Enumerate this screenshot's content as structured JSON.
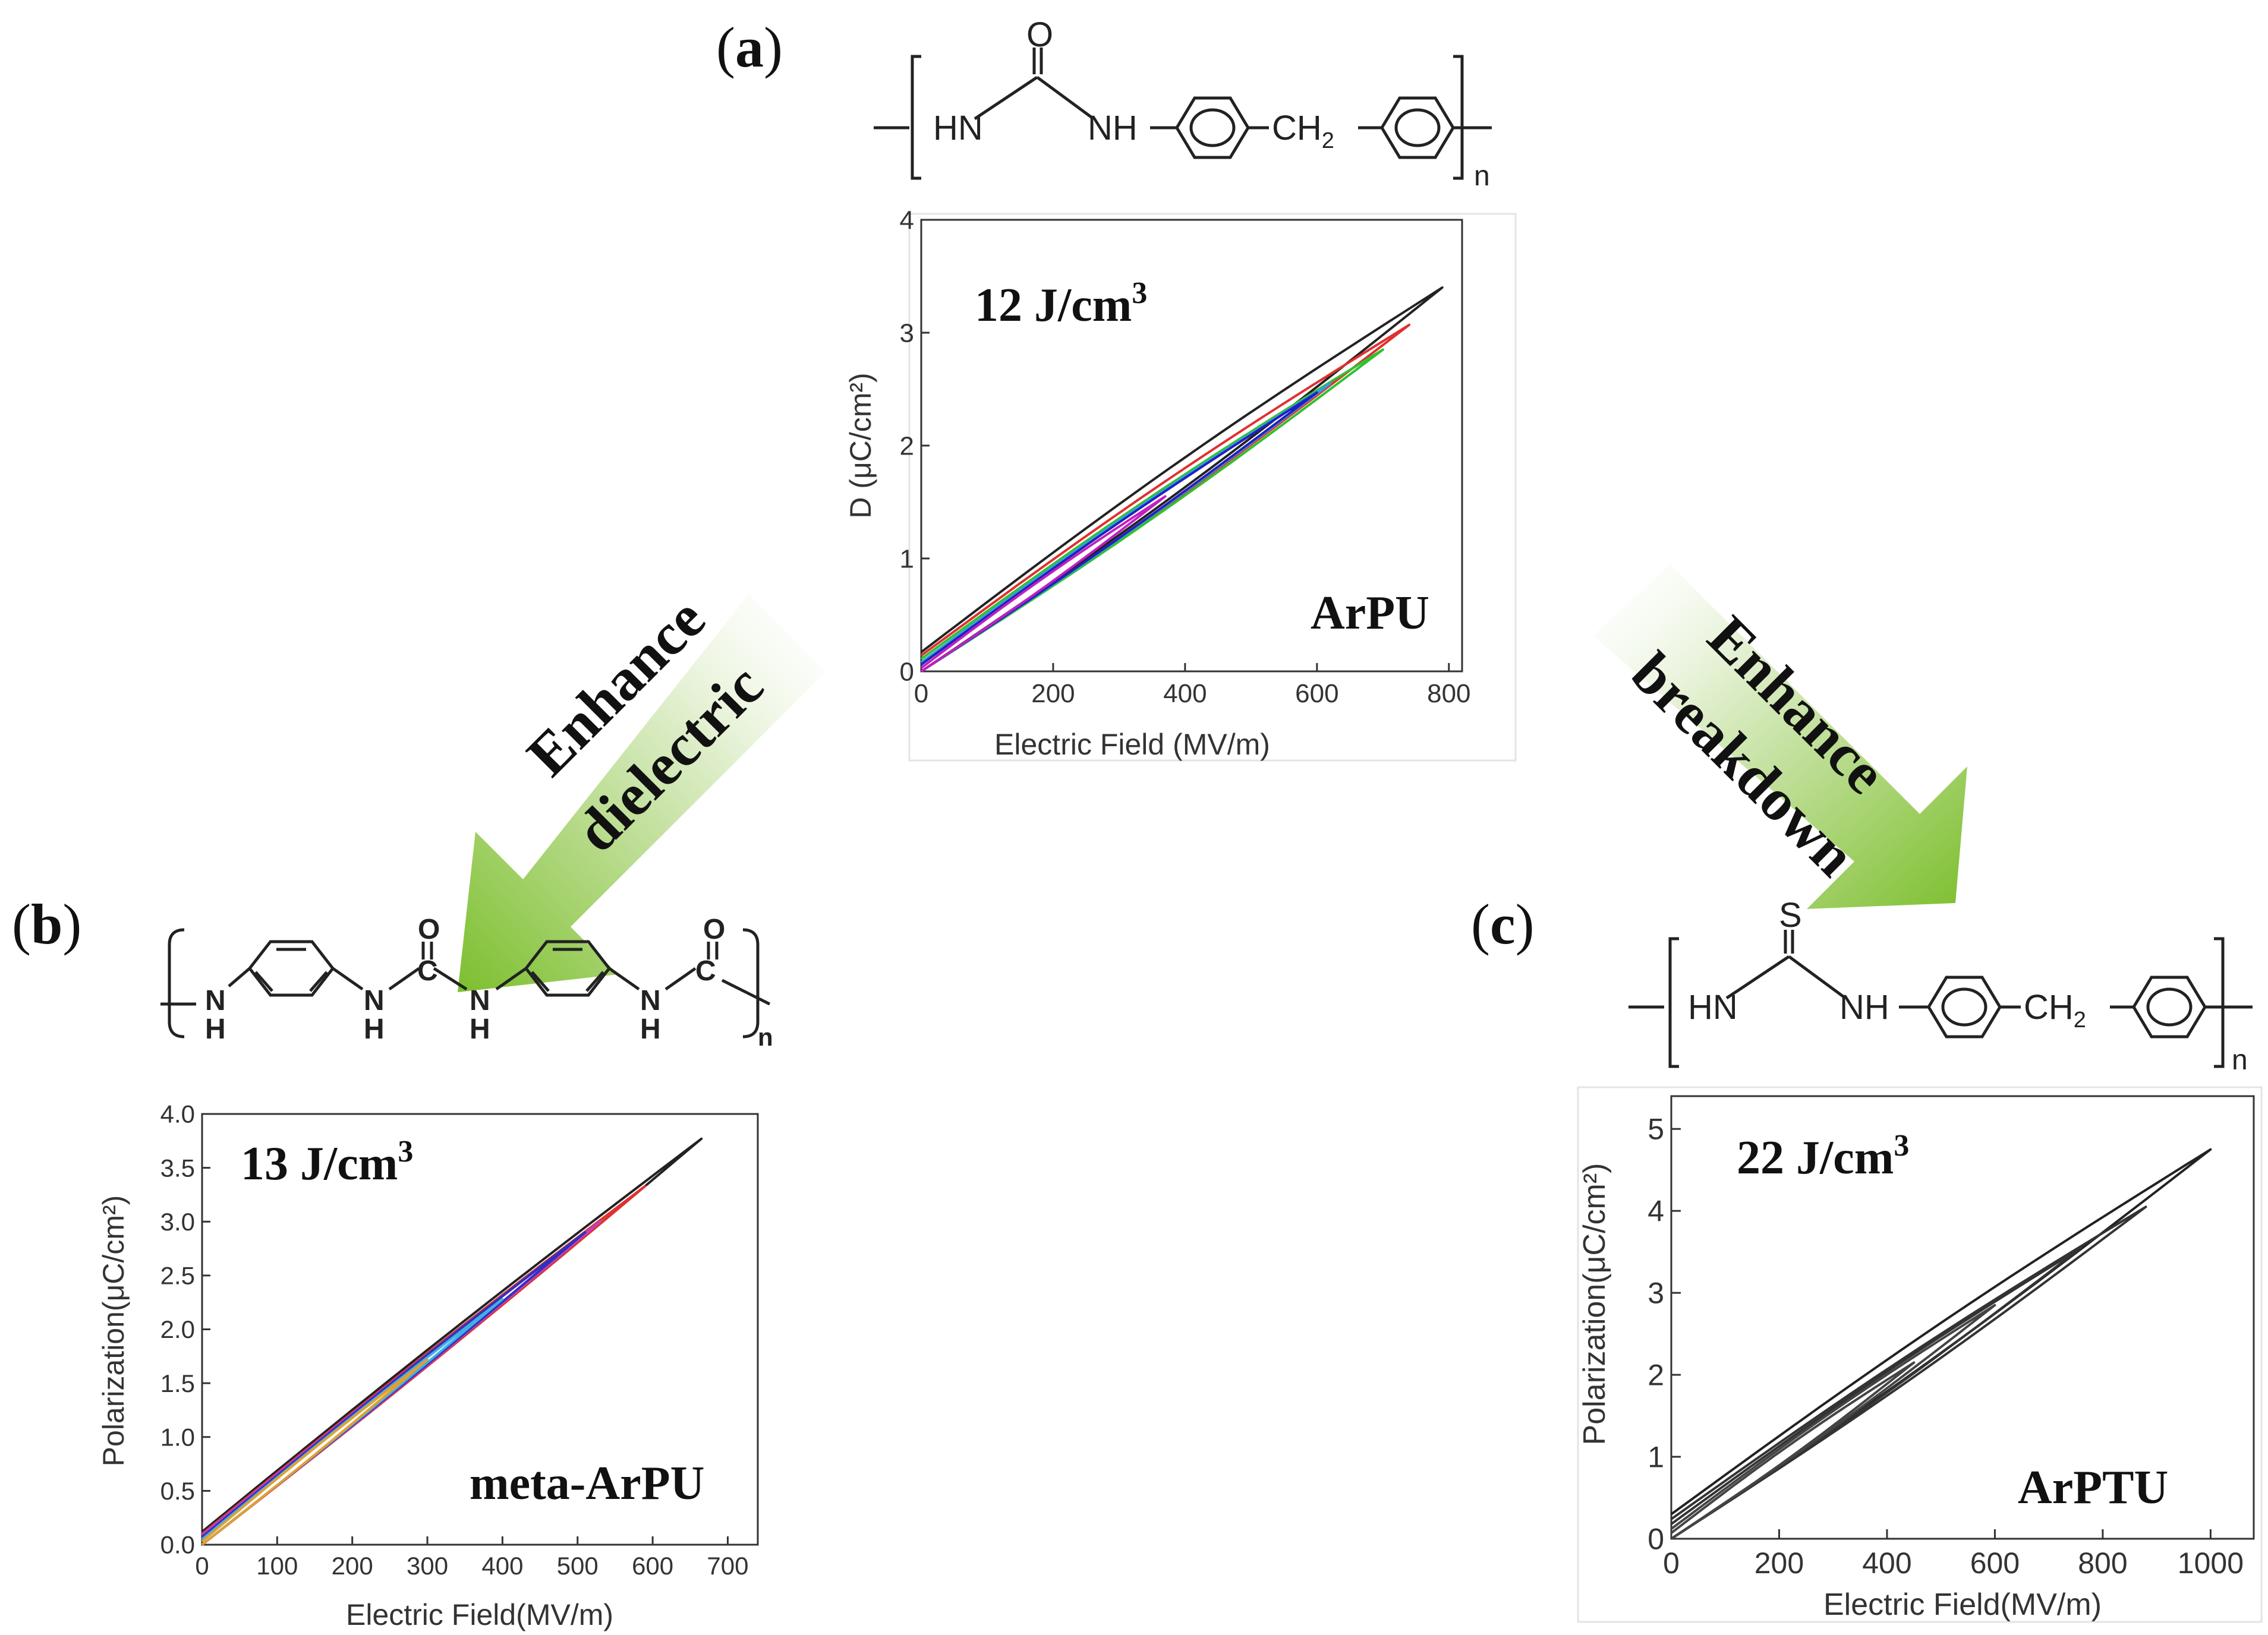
{
  "panels": [
    {
      "id": "a",
      "letter": "a",
      "polymer": "ArPU",
      "energy_value": "12 J/cm",
      "energy_sup": "3",
      "formula": {
        "nh_left": "HN",
        "carbonyl": "O",
        "nh_right": "NH",
        "bridge": "CH",
        "bridge_sub": "2",
        "repeat": "n"
      }
    },
    {
      "id": "b",
      "letter": "b",
      "polymer": "meta-ArPU",
      "energy_value": "13 J/cm",
      "energy_sup": "3",
      "formula": {
        "n_1": "N",
        "h_1": "H",
        "n_2": "N",
        "h_2": "H",
        "c_1": "C",
        "o_1": "O",
        "n_3": "N",
        "h_3": "H",
        "n_4": "N",
        "h_4": "H",
        "c_2": "C",
        "o_2": "O",
        "repeat": "n"
      }
    },
    {
      "id": "c",
      "letter": "c",
      "polymer": "ArPTU",
      "energy_value": "22 J/cm",
      "energy_sup": "3",
      "formula": {
        "nh_left": "HN",
        "thiocarbonyl": "S",
        "nh_right": "NH",
        "bridge": "CH",
        "bridge_sub": "2",
        "repeat": "n"
      }
    }
  ],
  "arrows": [
    {
      "id": "left",
      "line1": "Enhance",
      "line2": "dielectric",
      "color": "#8cc63f"
    },
    {
      "id": "right",
      "line1": "Enhance",
      "line2": "breakdown",
      "color": "#8cc63f"
    }
  ],
  "chart_data": [
    {
      "panel": "a",
      "type": "line",
      "xlabel": "Electric Field (MV/m)",
      "ylabel": "D (μC/cm²)",
      "xlim": [
        0,
        820
      ],
      "ylim": [
        0,
        4
      ],
      "xticks": [
        0,
        200,
        400,
        600,
        800
      ],
      "yticks": [
        0,
        1,
        2,
        3,
        4
      ],
      "grid": false,
      "series": [
        {
          "color": "#222222",
          "emax": 790,
          "dmax": 3.4,
          "hyst": 0.15,
          "d0": 0.17
        },
        {
          "color": "#e03030",
          "emax": 740,
          "dmax": 3.07,
          "hyst": 0.13,
          "d0": 0.14
        },
        {
          "color": "#30c030",
          "emax": 700,
          "dmax": 2.85,
          "hyst": 0.12,
          "d0": 0.11
        },
        {
          "color": "#30a0e0",
          "emax": 620,
          "dmax": 2.55,
          "hyst": 0.1,
          "d0": 0.08
        },
        {
          "color": "#2020c0",
          "emax": 600,
          "dmax": 2.47,
          "hyst": 0.09,
          "d0": 0.06
        },
        {
          "color": "#c020c0",
          "emax": 370,
          "dmax": 1.55,
          "hyst": 0.06,
          "d0": 0.03
        }
      ]
    },
    {
      "panel": "b",
      "type": "line",
      "xlabel": "Electric Field(MV/m)",
      "ylabel": "Polarization(μC/cm²)",
      "xlim": [
        0,
        740
      ],
      "ylim": [
        0,
        4.0
      ],
      "xticks": [
        0,
        100,
        200,
        300,
        400,
        500,
        600,
        700
      ],
      "ytick_labels": [
        "0.0",
        "0.5",
        "1.0",
        "1.5",
        "2.0",
        "2.5",
        "3.0",
        "3.5",
        "4.0"
      ],
      "grid": false,
      "series": [
        {
          "color": "#222222",
          "emax": 665,
          "dmax": 3.77,
          "hyst": 0.07,
          "d0": 0.12
        },
        {
          "color": "#e03030",
          "emax": 590,
          "dmax": 3.33,
          "hyst": 0.06,
          "d0": 0.1
        },
        {
          "color": "#c040c0",
          "emax": 530,
          "dmax": 3.0,
          "hyst": 0.05,
          "d0": 0.09
        },
        {
          "color": "#3030c0",
          "emax": 510,
          "dmax": 2.9,
          "hyst": 0.05,
          "d0": 0.07
        },
        {
          "color": "#40b0e0",
          "emax": 400,
          "dmax": 2.28,
          "hyst": 0.04,
          "d0": 0.05
        },
        {
          "color": "#e0a030",
          "emax": 300,
          "dmax": 1.72,
          "hyst": 0.04,
          "d0": 0.03
        }
      ]
    },
    {
      "panel": "c",
      "type": "line",
      "xlabel": "Electric Field(MV/m)",
      "ylabel": "Polarization(μC/cm²)",
      "xlim": [
        0,
        1080
      ],
      "ylim": [
        0,
        5.4
      ],
      "xticks": [
        0,
        200,
        400,
        600,
        800,
        1000
      ],
      "yticks": [
        0,
        1,
        2,
        3,
        4,
        5
      ],
      "grid": false,
      "series": [
        {
          "color": "#222222",
          "emax": 1000,
          "dmax": 4.75,
          "hyst": 0.18,
          "d0": 0.3
        },
        {
          "color": "#333333",
          "emax": 880,
          "dmax": 4.05,
          "hyst": 0.16,
          "d0": 0.24
        },
        {
          "color": "#333333",
          "emax": 760,
          "dmax": 3.55,
          "hyst": 0.14,
          "d0": 0.18
        },
        {
          "color": "#444444",
          "emax": 600,
          "dmax": 2.85,
          "hyst": 0.12,
          "d0": 0.12
        },
        {
          "color": "#444444",
          "emax": 450,
          "dmax": 2.15,
          "hyst": 0.1,
          "d0": 0.07
        }
      ]
    }
  ]
}
